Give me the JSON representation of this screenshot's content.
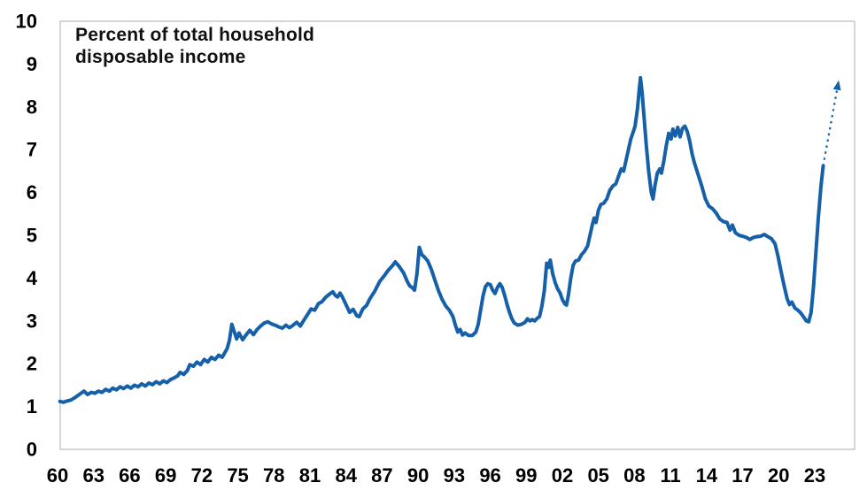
{
  "figure": {
    "title_line1": "Percent of total household",
    "title_line2": "disposable income"
  },
  "chart_data": {
    "type": "line",
    "title": "Percent of total household disposable income",
    "xlabel": "",
    "ylabel": "",
    "grid": false,
    "legend_position": "none",
    "ylim": [
      0,
      10
    ],
    "xlim": [
      1959.8,
      2026.2
    ],
    "y_ticks": [
      0,
      1,
      2,
      3,
      4,
      5,
      6,
      7,
      8,
      9,
      10
    ],
    "x_ticks": [
      {
        "year": 1960,
        "label": "60"
      },
      {
        "year": 1963,
        "label": "63"
      },
      {
        "year": 1966,
        "label": "66"
      },
      {
        "year": 1969,
        "label": "69"
      },
      {
        "year": 1972,
        "label": "72"
      },
      {
        "year": 1975,
        "label": "75"
      },
      {
        "year": 1978,
        "label": "78"
      },
      {
        "year": 1981,
        "label": "81"
      },
      {
        "year": 1984,
        "label": "84"
      },
      {
        "year": 1987,
        "label": "87"
      },
      {
        "year": 1990,
        "label": "90"
      },
      {
        "year": 1993,
        "label": "93"
      },
      {
        "year": 1996,
        "label": "96"
      },
      {
        "year": 1999,
        "label": "99"
      },
      {
        "year": 2002,
        "label": "02"
      },
      {
        "year": 2005,
        "label": "05"
      },
      {
        "year": 2008,
        "label": "08"
      },
      {
        "year": 2011,
        "label": "11"
      },
      {
        "year": 2014,
        "label": "14"
      },
      {
        "year": 2017,
        "label": "17"
      },
      {
        "year": 2020,
        "label": "20"
      },
      {
        "year": 2023,
        "label": "23"
      }
    ],
    "line_color": "#1560A8",
    "border_color": "#C9C9C9",
    "series": [
      {
        "name": "Percent of total household disposable income",
        "points": [
          [
            1960.2,
            1.12
          ],
          [
            1960.5,
            1.1
          ],
          [
            1960.8,
            1.13
          ],
          [
            1961.1,
            1.15
          ],
          [
            1961.4,
            1.2
          ],
          [
            1961.7,
            1.26
          ],
          [
            1962.0,
            1.32
          ],
          [
            1962.2,
            1.36
          ],
          [
            1962.5,
            1.28
          ],
          [
            1962.8,
            1.33
          ],
          [
            1963.1,
            1.31
          ],
          [
            1963.4,
            1.36
          ],
          [
            1963.7,
            1.33
          ],
          [
            1964.0,
            1.4
          ],
          [
            1964.3,
            1.36
          ],
          [
            1964.6,
            1.43
          ],
          [
            1964.9,
            1.39
          ],
          [
            1965.2,
            1.46
          ],
          [
            1965.5,
            1.42
          ],
          [
            1965.8,
            1.48
          ],
          [
            1966.1,
            1.43
          ],
          [
            1966.4,
            1.5
          ],
          [
            1966.7,
            1.46
          ],
          [
            1967.0,
            1.53
          ],
          [
            1967.3,
            1.48
          ],
          [
            1967.6,
            1.55
          ],
          [
            1967.9,
            1.51
          ],
          [
            1968.2,
            1.58
          ],
          [
            1968.5,
            1.53
          ],
          [
            1968.8,
            1.6
          ],
          [
            1969.1,
            1.56
          ],
          [
            1969.4,
            1.63
          ],
          [
            1969.7,
            1.67
          ],
          [
            1970.0,
            1.72
          ],
          [
            1970.2,
            1.8
          ],
          [
            1970.5,
            1.75
          ],
          [
            1970.8,
            1.84
          ],
          [
            1971.0,
            1.98
          ],
          [
            1971.3,
            1.94
          ],
          [
            1971.6,
            2.04
          ],
          [
            1971.9,
            1.98
          ],
          [
            1972.2,
            2.1
          ],
          [
            1972.5,
            2.04
          ],
          [
            1972.8,
            2.15
          ],
          [
            1973.1,
            2.1
          ],
          [
            1973.4,
            2.2
          ],
          [
            1973.7,
            2.15
          ],
          [
            1973.9,
            2.25
          ],
          [
            1974.1,
            2.35
          ],
          [
            1974.3,
            2.55
          ],
          [
            1974.5,
            2.92
          ],
          [
            1974.7,
            2.75
          ],
          [
            1974.9,
            2.58
          ],
          [
            1975.1,
            2.72
          ],
          [
            1975.4,
            2.56
          ],
          [
            1975.7,
            2.68
          ],
          [
            1976.0,
            2.78
          ],
          [
            1976.3,
            2.68
          ],
          [
            1976.6,
            2.8
          ],
          [
            1976.9,
            2.88
          ],
          [
            1977.2,
            2.95
          ],
          [
            1977.5,
            2.98
          ],
          [
            1977.8,
            2.93
          ],
          [
            1978.1,
            2.9
          ],
          [
            1978.4,
            2.86
          ],
          [
            1978.7,
            2.83
          ],
          [
            1979.0,
            2.9
          ],
          [
            1979.3,
            2.84
          ],
          [
            1979.6,
            2.9
          ],
          [
            1979.9,
            2.97
          ],
          [
            1980.2,
            2.88
          ],
          [
            1980.5,
            3.02
          ],
          [
            1980.8,
            3.15
          ],
          [
            1981.1,
            3.28
          ],
          [
            1981.4,
            3.25
          ],
          [
            1981.7,
            3.4
          ],
          [
            1982.0,
            3.45
          ],
          [
            1982.3,
            3.55
          ],
          [
            1982.6,
            3.62
          ],
          [
            1982.9,
            3.68
          ],
          [
            1983.1,
            3.6
          ],
          [
            1983.3,
            3.56
          ],
          [
            1983.5,
            3.65
          ],
          [
            1983.7,
            3.56
          ],
          [
            1984.0,
            3.38
          ],
          [
            1984.3,
            3.2
          ],
          [
            1984.6,
            3.27
          ],
          [
            1984.9,
            3.12
          ],
          [
            1985.1,
            3.1
          ],
          [
            1985.4,
            3.28
          ],
          [
            1985.7,
            3.36
          ],
          [
            1986.0,
            3.52
          ],
          [
            1986.4,
            3.7
          ],
          [
            1986.8,
            3.92
          ],
          [
            1987.2,
            4.06
          ],
          [
            1987.5,
            4.18
          ],
          [
            1987.9,
            4.3
          ],
          [
            1988.1,
            4.38
          ],
          [
            1988.4,
            4.28
          ],
          [
            1988.8,
            4.12
          ],
          [
            1989.1,
            3.92
          ],
          [
            1989.3,
            3.82
          ],
          [
            1989.5,
            3.78
          ],
          [
            1989.7,
            3.72
          ],
          [
            1989.9,
            4.1
          ],
          [
            1990.1,
            4.72
          ],
          [
            1990.3,
            4.55
          ],
          [
            1990.5,
            4.5
          ],
          [
            1990.8,
            4.4
          ],
          [
            1991.1,
            4.2
          ],
          [
            1991.4,
            3.95
          ],
          [
            1991.7,
            3.7
          ],
          [
            1992.0,
            3.5
          ],
          [
            1992.3,
            3.35
          ],
          [
            1992.6,
            3.25
          ],
          [
            1992.9,
            3.1
          ],
          [
            1993.1,
            2.9
          ],
          [
            1993.3,
            2.74
          ],
          [
            1993.5,
            2.8
          ],
          [
            1993.7,
            2.67
          ],
          [
            1993.9,
            2.72
          ],
          [
            1994.2,
            2.66
          ],
          [
            1994.5,
            2.66
          ],
          [
            1994.8,
            2.74
          ],
          [
            1995.0,
            2.92
          ],
          [
            1995.2,
            3.25
          ],
          [
            1995.4,
            3.58
          ],
          [
            1995.6,
            3.8
          ],
          [
            1995.8,
            3.87
          ],
          [
            1996.0,
            3.85
          ],
          [
            1996.2,
            3.72
          ],
          [
            1996.4,
            3.64
          ],
          [
            1996.6,
            3.78
          ],
          [
            1996.8,
            3.87
          ],
          [
            1997.0,
            3.78
          ],
          [
            1997.2,
            3.6
          ],
          [
            1997.4,
            3.38
          ],
          [
            1997.6,
            3.2
          ],
          [
            1997.8,
            3.05
          ],
          [
            1998.0,
            2.95
          ],
          [
            1998.3,
            2.9
          ],
          [
            1998.6,
            2.92
          ],
          [
            1998.9,
            2.97
          ],
          [
            1999.1,
            3.05
          ],
          [
            1999.3,
            3.0
          ],
          [
            1999.5,
            3.03
          ],
          [
            1999.7,
            3.0
          ],
          [
            1999.9,
            3.06
          ],
          [
            2000.1,
            3.1
          ],
          [
            2000.3,
            3.35
          ],
          [
            2000.5,
            3.7
          ],
          [
            2000.7,
            4.35
          ],
          [
            2000.85,
            4.25
          ],
          [
            2001.0,
            4.42
          ],
          [
            2001.2,
            4.1
          ],
          [
            2001.4,
            3.9
          ],
          [
            2001.6,
            3.75
          ],
          [
            2001.8,
            3.66
          ],
          [
            2002.0,
            3.5
          ],
          [
            2002.2,
            3.4
          ],
          [
            2002.35,
            3.37
          ],
          [
            2002.5,
            3.6
          ],
          [
            2002.7,
            4.0
          ],
          [
            2002.9,
            4.3
          ],
          [
            2003.1,
            4.4
          ],
          [
            2003.35,
            4.42
          ],
          [
            2003.6,
            4.55
          ],
          [
            2003.85,
            4.63
          ],
          [
            2004.1,
            4.75
          ],
          [
            2004.3,
            5.0
          ],
          [
            2004.5,
            5.25
          ],
          [
            2004.65,
            5.4
          ],
          [
            2004.8,
            5.3
          ],
          [
            2005.0,
            5.58
          ],
          [
            2005.2,
            5.72
          ],
          [
            2005.45,
            5.75
          ],
          [
            2005.7,
            5.85
          ],
          [
            2005.95,
            6.05
          ],
          [
            2006.2,
            6.15
          ],
          [
            2006.45,
            6.2
          ],
          [
            2006.7,
            6.4
          ],
          [
            2006.9,
            6.55
          ],
          [
            2007.1,
            6.5
          ],
          [
            2007.3,
            6.75
          ],
          [
            2007.5,
            7.0
          ],
          [
            2007.7,
            7.25
          ],
          [
            2007.9,
            7.42
          ],
          [
            2008.05,
            7.55
          ],
          [
            2008.25,
            7.95
          ],
          [
            2008.4,
            8.4
          ],
          [
            2008.5,
            8.68
          ],
          [
            2008.65,
            8.3
          ],
          [
            2008.8,
            7.75
          ],
          [
            2009.0,
            7.05
          ],
          [
            2009.2,
            6.45
          ],
          [
            2009.4,
            6.0
          ],
          [
            2009.55,
            5.85
          ],
          [
            2009.7,
            6.15
          ],
          [
            2009.9,
            6.45
          ],
          [
            2010.1,
            6.55
          ],
          [
            2010.25,
            6.45
          ],
          [
            2010.45,
            6.75
          ],
          [
            2010.65,
            7.1
          ],
          [
            2010.85,
            7.38
          ],
          [
            2011.05,
            7.25
          ],
          [
            2011.2,
            7.48
          ],
          [
            2011.4,
            7.32
          ],
          [
            2011.6,
            7.52
          ],
          [
            2011.8,
            7.3
          ],
          [
            2012.0,
            7.5
          ],
          [
            2012.2,
            7.55
          ],
          [
            2012.4,
            7.42
          ],
          [
            2012.6,
            7.2
          ],
          [
            2012.8,
            6.9
          ],
          [
            2013.0,
            6.68
          ],
          [
            2013.3,
            6.42
          ],
          [
            2013.6,
            6.15
          ],
          [
            2013.9,
            5.85
          ],
          [
            2014.2,
            5.68
          ],
          [
            2014.5,
            5.62
          ],
          [
            2014.8,
            5.52
          ],
          [
            2015.1,
            5.38
          ],
          [
            2015.4,
            5.32
          ],
          [
            2015.7,
            5.3
          ],
          [
            2015.95,
            5.12
          ],
          [
            2016.15,
            5.24
          ],
          [
            2016.4,
            5.06
          ],
          [
            2016.7,
            5.0
          ],
          [
            2017.0,
            4.98
          ],
          [
            2017.3,
            4.95
          ],
          [
            2017.6,
            4.9
          ],
          [
            2017.9,
            4.95
          ],
          [
            2018.2,
            4.97
          ],
          [
            2018.5,
            4.98
          ],
          [
            2018.8,
            5.02
          ],
          [
            2019.1,
            4.97
          ],
          [
            2019.4,
            4.92
          ],
          [
            2019.7,
            4.8
          ],
          [
            2019.95,
            4.5
          ],
          [
            2020.2,
            4.15
          ],
          [
            2020.45,
            3.82
          ],
          [
            2020.7,
            3.52
          ],
          [
            2020.9,
            3.38
          ],
          [
            2021.1,
            3.44
          ],
          [
            2021.35,
            3.3
          ],
          [
            2021.6,
            3.25
          ],
          [
            2021.85,
            3.18
          ],
          [
            2022.1,
            3.08
          ],
          [
            2022.3,
            3.0
          ],
          [
            2022.5,
            2.98
          ],
          [
            2022.7,
            3.2
          ],
          [
            2022.9,
            3.8
          ],
          [
            2023.1,
            4.6
          ],
          [
            2023.3,
            5.4
          ],
          [
            2023.5,
            6.1
          ],
          [
            2023.7,
            6.62
          ]
        ]
      }
    ],
    "projection": {
      "style": "dashed-arrow",
      "points": [
        [
          2023.7,
          6.62
        ],
        [
          2025.0,
          8.62
        ]
      ]
    }
  }
}
